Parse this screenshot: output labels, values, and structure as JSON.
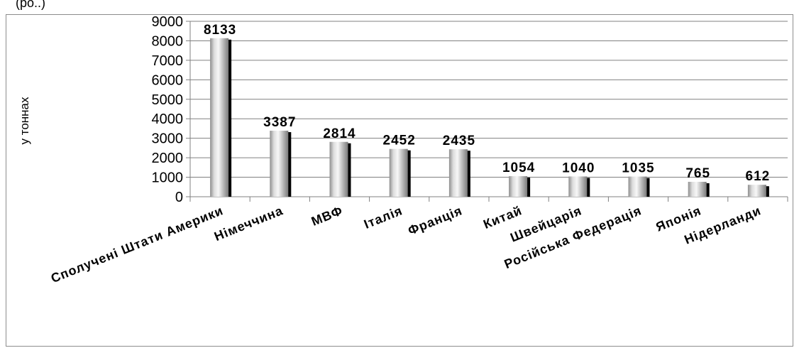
{
  "chart_data": {
    "type": "bar",
    "title": "",
    "xlabel": "",
    "ylabel": "у тоннах",
    "ylim": [
      0,
      9000
    ],
    "yticks": [
      0,
      1000,
      2000,
      3000,
      4000,
      5000,
      6000,
      7000,
      8000,
      9000
    ],
    "grid": true,
    "legend": "none",
    "categories": [
      "Сполучені Штати Америки",
      "Німеччина",
      "МВФ",
      "Італія",
      "Франція",
      "Китай",
      "Швейцарія",
      "Російська Федерація",
      "Японія",
      "Нідерланди"
    ],
    "values": [
      8133,
      3387,
      2814,
      2452,
      2435,
      1054,
      1040,
      1035,
      765,
      612
    ],
    "colors": {
      "bar_light": "#f4f4f4",
      "bar_mid": "#9a9a9a",
      "bar_shadow": "#000000",
      "grid": "#808080"
    }
  }
}
